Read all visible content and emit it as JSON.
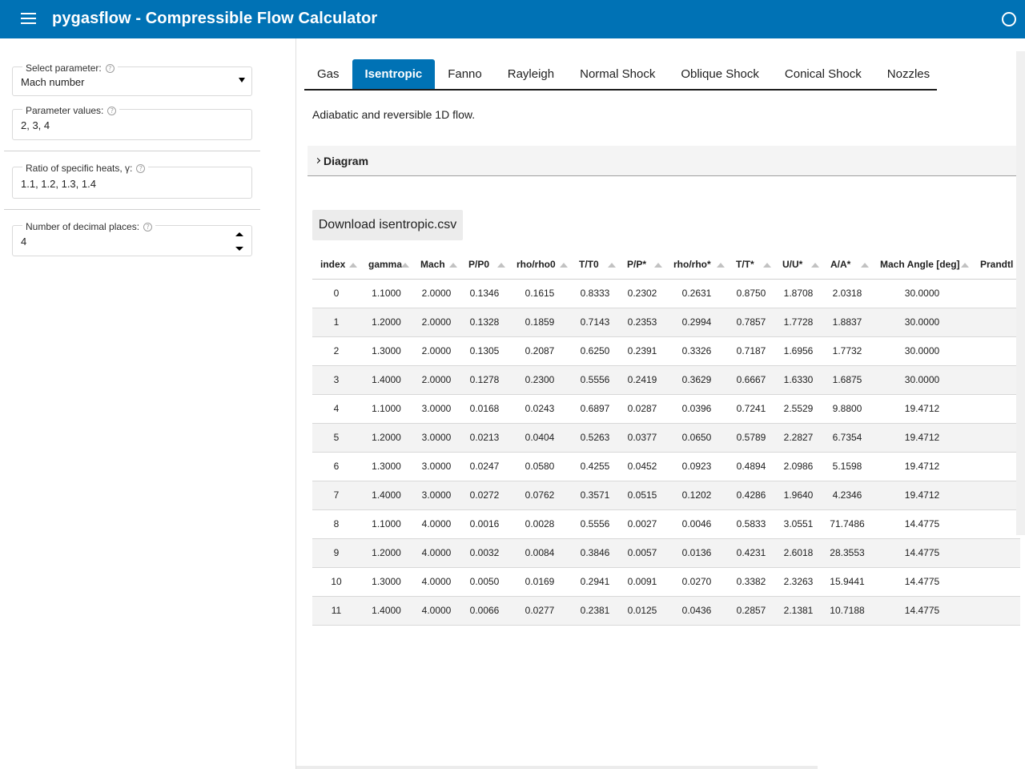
{
  "app": {
    "title": "pygasflow - Compressible Flow Calculator"
  },
  "sidebar": {
    "select_parameter": {
      "label": "Select parameter:",
      "value": "Mach number"
    },
    "parameter_values": {
      "label": "Parameter values:",
      "value": "2, 3, 4"
    },
    "gamma": {
      "label": "Ratio of specific heats, γ:",
      "value": "1.1, 1.2, 1.3, 1.4"
    },
    "decimals": {
      "label": "Number of decimal places:",
      "value": "4"
    },
    "help_glyph": "?"
  },
  "tabs": [
    "Gas",
    "Isentropic",
    "Fanno",
    "Rayleigh",
    "Normal Shock",
    "Oblique Shock",
    "Conical Shock",
    "Nozzles"
  ],
  "active_tab": "Isentropic",
  "main": {
    "description": "Adiabatic and reversible 1D flow.",
    "accordion_label": "Diagram",
    "download_label": "Download isentropic.csv"
  },
  "table": {
    "headers": [
      "index",
      "gamma",
      "Mach",
      "P/P0",
      "rho/rho0",
      "T/T0",
      "P/P*",
      "rho/rho*",
      "T/T*",
      "U/U*",
      "A/A*",
      "Mach Angle [deg]",
      "Prandtl"
    ],
    "rows": [
      [
        "0",
        "1.1000",
        "2.0000",
        "0.1346",
        "0.1615",
        "0.8333",
        "0.2302",
        "0.2631",
        "0.8750",
        "1.8708",
        "2.0318",
        "30.0000",
        ""
      ],
      [
        "1",
        "1.2000",
        "2.0000",
        "0.1328",
        "0.1859",
        "0.7143",
        "0.2353",
        "0.2994",
        "0.7857",
        "1.7728",
        "1.8837",
        "30.0000",
        ""
      ],
      [
        "2",
        "1.3000",
        "2.0000",
        "0.1305",
        "0.2087",
        "0.6250",
        "0.2391",
        "0.3326",
        "0.7187",
        "1.6956",
        "1.7732",
        "30.0000",
        ""
      ],
      [
        "3",
        "1.4000",
        "2.0000",
        "0.1278",
        "0.2300",
        "0.5556",
        "0.2419",
        "0.3629",
        "0.6667",
        "1.6330",
        "1.6875",
        "30.0000",
        ""
      ],
      [
        "4",
        "1.1000",
        "3.0000",
        "0.0168",
        "0.0243",
        "0.6897",
        "0.0287",
        "0.0396",
        "0.7241",
        "2.5529",
        "9.8800",
        "19.4712",
        ""
      ],
      [
        "5",
        "1.2000",
        "3.0000",
        "0.0213",
        "0.0404",
        "0.5263",
        "0.0377",
        "0.0650",
        "0.5789",
        "2.2827",
        "6.7354",
        "19.4712",
        ""
      ],
      [
        "6",
        "1.3000",
        "3.0000",
        "0.0247",
        "0.0580",
        "0.4255",
        "0.0452",
        "0.0923",
        "0.4894",
        "2.0986",
        "5.1598",
        "19.4712",
        ""
      ],
      [
        "7",
        "1.4000",
        "3.0000",
        "0.0272",
        "0.0762",
        "0.3571",
        "0.0515",
        "0.1202",
        "0.4286",
        "1.9640",
        "4.2346",
        "19.4712",
        ""
      ],
      [
        "8",
        "1.1000",
        "4.0000",
        "0.0016",
        "0.0028",
        "0.5556",
        "0.0027",
        "0.0046",
        "0.5833",
        "3.0551",
        "71.7486",
        "14.4775",
        ""
      ],
      [
        "9",
        "1.2000",
        "4.0000",
        "0.0032",
        "0.0084",
        "0.3846",
        "0.0057",
        "0.0136",
        "0.4231",
        "2.6018",
        "28.3553",
        "14.4775",
        ""
      ],
      [
        "10",
        "1.3000",
        "4.0000",
        "0.0050",
        "0.0169",
        "0.2941",
        "0.0091",
        "0.0270",
        "0.3382",
        "2.3263",
        "15.9441",
        "14.4775",
        ""
      ],
      [
        "11",
        "1.4000",
        "4.0000",
        "0.0066",
        "0.0277",
        "0.2381",
        "0.0125",
        "0.0436",
        "0.2857",
        "2.1381",
        "10.7188",
        "14.4775",
        ""
      ]
    ]
  },
  "colors": {
    "header_bg": "#0072b5",
    "active_tab": "#0072b5",
    "row_stripe": "#f3f3f3"
  },
  "icons": {
    "menu": "hamburger-icon",
    "busy": "busy-indicator-icon",
    "sort": "sort-ascending-icon",
    "help": "help-circle-icon"
  }
}
